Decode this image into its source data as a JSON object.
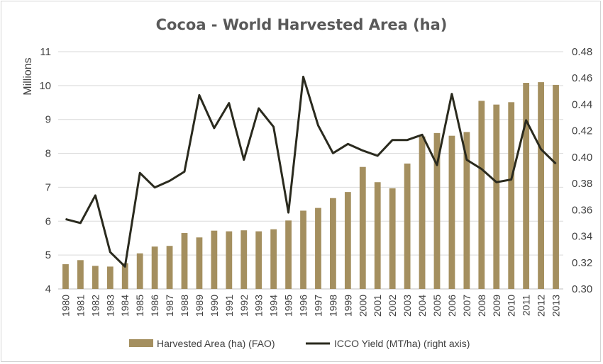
{
  "chart_data": {
    "type": "bar",
    "title": "Cocoa - World Harvested Area (ha)",
    "ylabel": "Millions",
    "ylim": [
      4,
      11
    ],
    "y_ticks": [
      "4",
      "5",
      "6",
      "7",
      "8",
      "9",
      "10",
      "11"
    ],
    "y2lim": [
      0.3,
      0.48
    ],
    "y2_ticks": [
      "0.30",
      "0.32",
      "0.34",
      "0.36",
      "0.38",
      "0.40",
      "0.42",
      "0.44",
      "0.46",
      "0.48"
    ],
    "grid": true,
    "legend_position": "bottom",
    "categories": [
      "1980",
      "1981",
      "1982",
      "1983",
      "1984",
      "1985",
      "1986",
      "1987",
      "1988",
      "1989",
      "1990",
      "1991",
      "1992",
      "1993",
      "1994",
      "1995",
      "1996",
      "1997",
      "1998",
      "1999",
      "2000",
      "2001",
      "2002",
      "2003",
      "2004",
      "2005",
      "2006",
      "2007",
      "2008",
      "2009",
      "2010",
      "2011",
      "2012",
      "2013"
    ],
    "series": [
      {
        "name": "Harvested Area (ha) (FAO)",
        "type": "bar",
        "axis": "left",
        "color": "#a48f5f",
        "values": [
          4.73,
          4.85,
          4.68,
          4.66,
          4.76,
          5.05,
          5.25,
          5.27,
          5.65,
          5.52,
          5.72,
          5.7,
          5.73,
          5.7,
          5.76,
          6.02,
          6.31,
          6.39,
          6.68,
          6.86,
          7.6,
          7.15,
          6.97,
          7.7,
          8.5,
          8.6,
          8.52,
          8.63,
          9.55,
          9.44,
          9.51,
          10.08,
          10.1,
          10.02
        ]
      },
      {
        "name": "ICCO Yield (MT/ha) (right axis)",
        "type": "line",
        "axis": "right",
        "color": "#2a2a1e",
        "values": [
          0.353,
          0.35,
          0.371,
          0.328,
          0.317,
          0.388,
          0.377,
          0.382,
          0.389,
          0.447,
          0.422,
          0.441,
          0.398,
          0.437,
          0.423,
          0.358,
          0.461,
          0.424,
          0.403,
          0.41,
          0.405,
          0.401,
          0.413,
          0.413,
          0.417,
          0.394,
          0.448,
          0.398,
          0.391,
          0.381,
          0.383,
          0.428,
          0.406,
          0.395
        ]
      }
    ]
  }
}
